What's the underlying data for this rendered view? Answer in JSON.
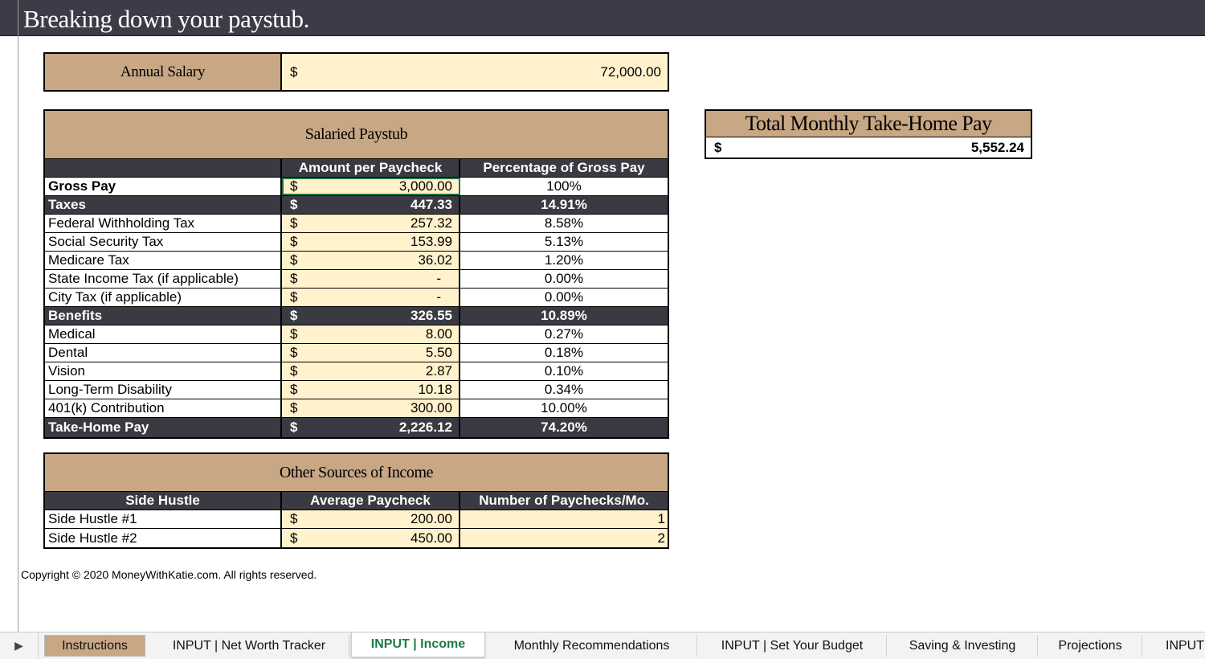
{
  "page_title": "Breaking down your paystub.",
  "annual_salary": {
    "label": "Annual Salary",
    "currency": "$",
    "value": "72,000.00"
  },
  "paystub": {
    "title": "Salaried Paystub",
    "headers": [
      "",
      "Amount per Paycheck",
      "Percentage of Gross Pay"
    ],
    "rows": [
      {
        "label": "Gross Pay",
        "currency": "$",
        "amount": "3,000.00",
        "pct": "100%"
      },
      {
        "label": "Taxes",
        "currency": "$",
        "amount": "447.33",
        "pct": "14.91%"
      },
      {
        "label": "Federal Withholding Tax",
        "currency": "$",
        "amount": "257.32",
        "pct": "8.58%"
      },
      {
        "label": "Social Security Tax",
        "currency": "$",
        "amount": "153.99",
        "pct": "5.13%"
      },
      {
        "label": "Medicare Tax",
        "currency": "$",
        "amount": "36.02",
        "pct": "1.20%"
      },
      {
        "label": "State Income Tax (if applicable)",
        "currency": "$",
        "amount": "-",
        "pct": "0.00%"
      },
      {
        "label": "City Tax (if applicable)",
        "currency": "$",
        "amount": "-",
        "pct": "0.00%"
      },
      {
        "label": "Benefits",
        "currency": "$",
        "amount": "326.55",
        "pct": "10.89%"
      },
      {
        "label": "Medical",
        "currency": "$",
        "amount": "8.00",
        "pct": "0.27%"
      },
      {
        "label": "Dental",
        "currency": "$",
        "amount": "5.50",
        "pct": "0.18%"
      },
      {
        "label": "Vision",
        "currency": "$",
        "amount": "2.87",
        "pct": "0.10%"
      },
      {
        "label": "Long-Term Disability",
        "currency": "$",
        "amount": "10.18",
        "pct": "0.34%"
      },
      {
        "label": "401(k) Contribution",
        "currency": "$",
        "amount": "300.00",
        "pct": "10.00%"
      },
      {
        "label": "Take-Home Pay",
        "currency": "$",
        "amount": "2,226.12",
        "pct": "74.20%"
      }
    ]
  },
  "total_monthly": {
    "title": "Total Monthly Take-Home Pay",
    "currency": "$",
    "value": "5,552.24"
  },
  "other_income": {
    "title": "Other Sources of Income",
    "headers": [
      "Side Hustle",
      "Average Paycheck",
      "Number of Paychecks/Mo."
    ],
    "rows": [
      {
        "label": "Side Hustle #1",
        "currency": "$",
        "amount": "200.00",
        "count": "1"
      },
      {
        "label": "Side Hustle #2",
        "currency": "$",
        "amount": "450.00",
        "count": "2"
      }
    ]
  },
  "copyright": "Copyright © 2020 MoneyWithKatie.com. All rights reserved.",
  "tabs": [
    {
      "label": "Instructions"
    },
    {
      "label": "INPUT | Net Worth Tracker"
    },
    {
      "label": "INPUT | Income"
    },
    {
      "label": "Monthly Recommendations"
    },
    {
      "label": "INPUT | Set Your Budget"
    },
    {
      "label": "Saving & Investing"
    },
    {
      "label": "Projections"
    },
    {
      "label": "INPUT"
    }
  ],
  "colors": {
    "header_band": "#3d3b47",
    "tan": "#c8a784",
    "cream": "#fff2cc",
    "dark_row": "#3a3a42",
    "active_tab": "#1e7b45"
  }
}
